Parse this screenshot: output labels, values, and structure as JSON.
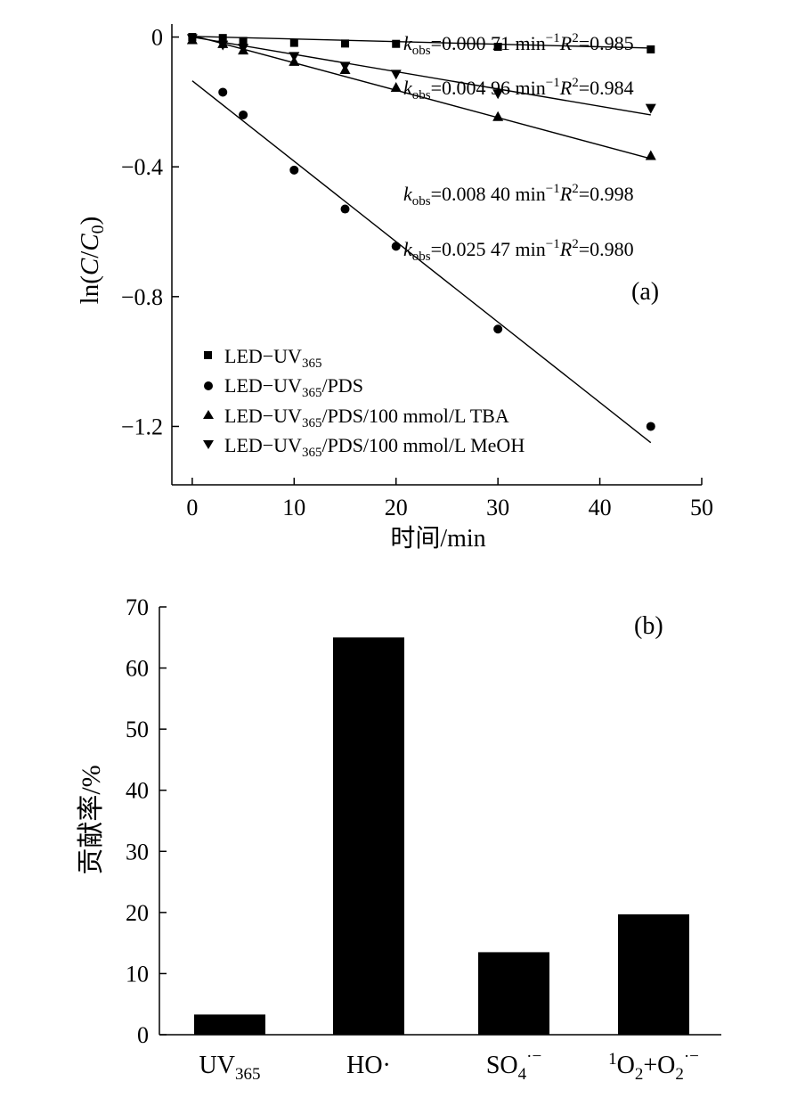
{
  "chart_data": [
    {
      "panel": "(a)",
      "type": "scatter",
      "xlabel": "时间/min",
      "ylabel": "ln(C/C0)",
      "xlim": [
        -2,
        50
      ],
      "ylim": [
        -1.38,
        0.04
      ],
      "xticks": [
        0,
        10,
        20,
        30,
        40,
        50
      ],
      "yticks": [
        0,
        -0.4,
        -0.8,
        -1.2
      ],
      "ytick_labels": [
        "0",
        "−0.4",
        "−0.8",
        "−1.2"
      ],
      "legend_position": "bottom-left",
      "series": [
        {
          "name": "LED−UV365",
          "marker": "square",
          "x": [
            0,
            3,
            5,
            10,
            15,
            20,
            30,
            45
          ],
          "y": [
            0,
            -0.003,
            -0.012,
            -0.018,
            -0.02,
            -0.021,
            -0.03,
            -0.038
          ],
          "fit_line": [
            [
              0,
              0.002
            ],
            [
              45,
              -0.034
            ]
          ],
          "annotation": {
            "k": "0.000 71",
            "r2": "0.985"
          }
        },
        {
          "name": "LED−UV365/PDS",
          "marker": "circle",
          "x": [
            3,
            5,
            10,
            15,
            20,
            30,
            45
          ],
          "y": [
            -0.17,
            -0.24,
            -0.41,
            -0.53,
            -0.645,
            -0.9,
            -1.2
          ],
          "fit_line": [
            [
              0,
              -0.135
            ],
            [
              45,
              -1.25
            ]
          ],
          "annotation": {
            "k": "0.025 47",
            "r2": "0.980"
          }
        },
        {
          "name": "LED−UV365/PDS/100 mmol/L TBA",
          "marker": "triangle-up",
          "x": [
            0,
            3,
            5,
            10,
            15,
            20,
            30,
            45
          ],
          "y": [
            -0.008,
            -0.02,
            -0.04,
            -0.075,
            -0.1,
            -0.155,
            -0.245,
            -0.365
          ],
          "fit_line": [
            [
              0,
              0.005
            ],
            [
              45,
              -0.375
            ]
          ],
          "annotation": {
            "k": "0.008 40",
            "r2": "0.998"
          }
        },
        {
          "name": "LED−UV365/PDS/100 mmol/L MeOH",
          "marker": "triangle-down",
          "x": [
            0,
            3,
            5,
            10,
            15,
            20,
            30,
            45
          ],
          "y": [
            -0.005,
            -0.025,
            -0.035,
            -0.06,
            -0.09,
            -0.115,
            -0.175,
            -0.22
          ],
          "fit_line": [
            [
              0,
              0.0
            ],
            [
              45,
              -0.24
            ]
          ],
          "annotation": {
            "k": "0.004 96",
            "r2": "0.984"
          }
        }
      ]
    },
    {
      "panel": "(b)",
      "type": "bar",
      "ylabel": "贡献率/%",
      "ylim": [
        0,
        70
      ],
      "yticks": [
        0,
        10,
        20,
        30,
        40,
        50,
        60,
        70
      ],
      "categories": [
        "UV365",
        "HO·",
        "SO4·−",
        "1O2+O2·−"
      ],
      "values": [
        3.3,
        65,
        13.5,
        19.7
      ],
      "bar_color": "#000000"
    }
  ],
  "text": {
    "k_symbol": "k",
    "k_sub": "obs",
    "k_eq": "=",
    "unit": " min",
    "unit_exp": "−1",
    "r_symbol": "R",
    "r_exp": "2",
    "r_eq": "=",
    "ylabel_a_prefix": "ln(",
    "ylabel_a_c": "C",
    "ylabel_a_slash": "/",
    "ylabel_a_c0": "C",
    "ylabel_a_c0_sub": "0",
    "ylabel_a_suffix": ")",
    "legend_led": "LED−UV",
    "legend_sub": "365",
    "legend_suffix_pds": "/PDS",
    "legend_suffix_tba": "/PDS/100 mmol/L TBA",
    "legend_suffix_meoh": "/PDS/100 mmol/L MeOH",
    "cat_uv": "UV",
    "cat_uv_sub": "365",
    "cat_ho": "HO·",
    "cat_so": "SO",
    "cat_so_sub": "4",
    "cat_so_sup": "·−",
    "cat_o_pre": "1",
    "cat_o_a": "O",
    "cat_o_sub1": "2",
    "cat_o_mid": "+O",
    "cat_o_sub2": "2",
    "cat_o_sup": "·−"
  }
}
